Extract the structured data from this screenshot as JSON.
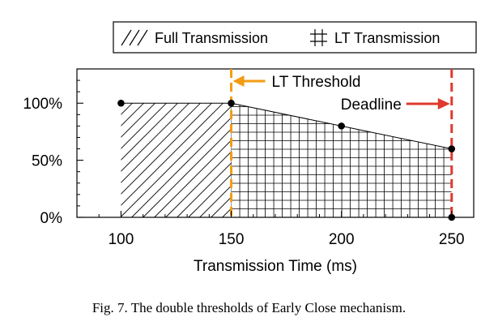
{
  "chart_data": {
    "type": "area",
    "title": "",
    "xlabel": "Transmission Time (ms)",
    "ylabel": "",
    "xlim": [
      80,
      260
    ],
    "ylim": [
      0,
      130
    ],
    "x_ticks": [
      100,
      150,
      200,
      250
    ],
    "y_ticks": [
      0,
      50,
      100
    ],
    "y_tick_labels": [
      "0%",
      "50%",
      "100%"
    ],
    "legend_position": "top-right",
    "series": [
      {
        "name": "Full Transmission",
        "pattern": "diagonal-hatch",
        "points": [
          [
            100,
            100
          ],
          [
            150,
            100
          ]
        ]
      },
      {
        "name": "LT Transmission",
        "pattern": "grid-hatch",
        "points": [
          [
            150,
            100
          ],
          [
            200,
            80
          ],
          [
            250,
            60
          ]
        ]
      }
    ],
    "markers": [
      [
        100,
        100
      ],
      [
        150,
        100
      ],
      [
        200,
        80
      ],
      [
        250,
        60
      ],
      [
        250,
        0
      ]
    ],
    "thresholds": [
      {
        "label": "LT Threshold",
        "x": 150,
        "color": "#f39c12"
      },
      {
        "label": "Deadline",
        "x": 250,
        "color": "#e03a2e"
      }
    ]
  },
  "caption": "Fig. 7.  The double thresholds of Early Close mechanism."
}
